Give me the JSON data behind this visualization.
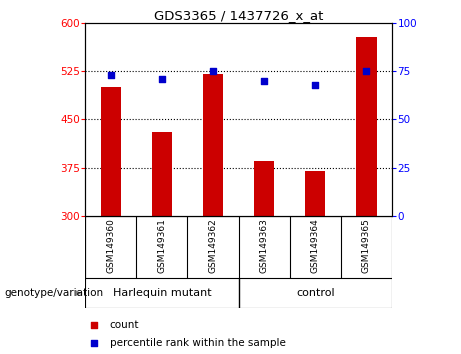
{
  "title": "GDS3365 / 1437726_x_at",
  "samples": [
    "GSM149360",
    "GSM149361",
    "GSM149362",
    "GSM149363",
    "GSM149364",
    "GSM149365"
  ],
  "bar_values": [
    500,
    430,
    520,
    385,
    370,
    578
  ],
  "percentile_values": [
    73,
    71,
    75,
    70,
    68,
    75
  ],
  "ylim_left": [
    300,
    600
  ],
  "ylim_right": [
    0,
    100
  ],
  "yticks_left": [
    300,
    375,
    450,
    525,
    600
  ],
  "yticks_right": [
    0,
    25,
    50,
    75,
    100
  ],
  "bar_color": "#cc0000",
  "dot_color": "#0000cc",
  "bar_width": 0.4,
  "group1_label": "Harlequin mutant",
  "group2_label": "control",
  "group_color": "#77ee77",
  "group_label_text": "genotype/variation",
  "legend_items": [
    {
      "label": "count",
      "color": "#cc0000"
    },
    {
      "label": "percentile rank within the sample",
      "color": "#0000cc"
    }
  ],
  "background_labels": "#c8c8c8",
  "dotted_lines": [
    525,
    450,
    375
  ]
}
